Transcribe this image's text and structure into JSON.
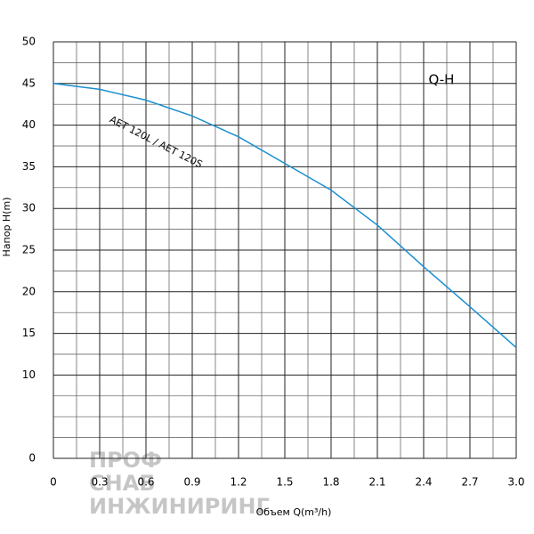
{
  "chart_data": {
    "type": "line",
    "x_label": "Объем Q(m³/h)",
    "y_label": "Напор H(m)",
    "annotations": [
      "Q-H",
      "AET 120L / AET 120S"
    ],
    "watermark": [
      "ПРОФ",
      "СНАБ",
      "ИНЖИНИРИНГ"
    ],
    "x": [
      0,
      0.3,
      0.6,
      0.9,
      1.2,
      1.5,
      1.8,
      2.1,
      2.4,
      2.7,
      3.0
    ],
    "series": [
      {
        "name": "AET 120L / AET 120S",
        "color": "#1a8fd0",
        "values": [
          45,
          44.3,
          43,
          41.1,
          38.6,
          35.4,
          32.2,
          28,
          23,
          18.2,
          13.3
        ]
      }
    ],
    "xlim": [
      0,
      3
    ],
    "xticks": [
      0,
      0.3,
      0.6,
      0.9,
      1.2,
      1.5,
      1.8,
      2.1,
      2.4,
      2.7,
      {
        "value": 3,
        "label": "3.0"
      }
    ],
    "ylim": [
      0,
      50
    ],
    "yticks": [
      0,
      10,
      15,
      20,
      25,
      30,
      35,
      40,
      45,
      50
    ],
    "grid": true
  }
}
